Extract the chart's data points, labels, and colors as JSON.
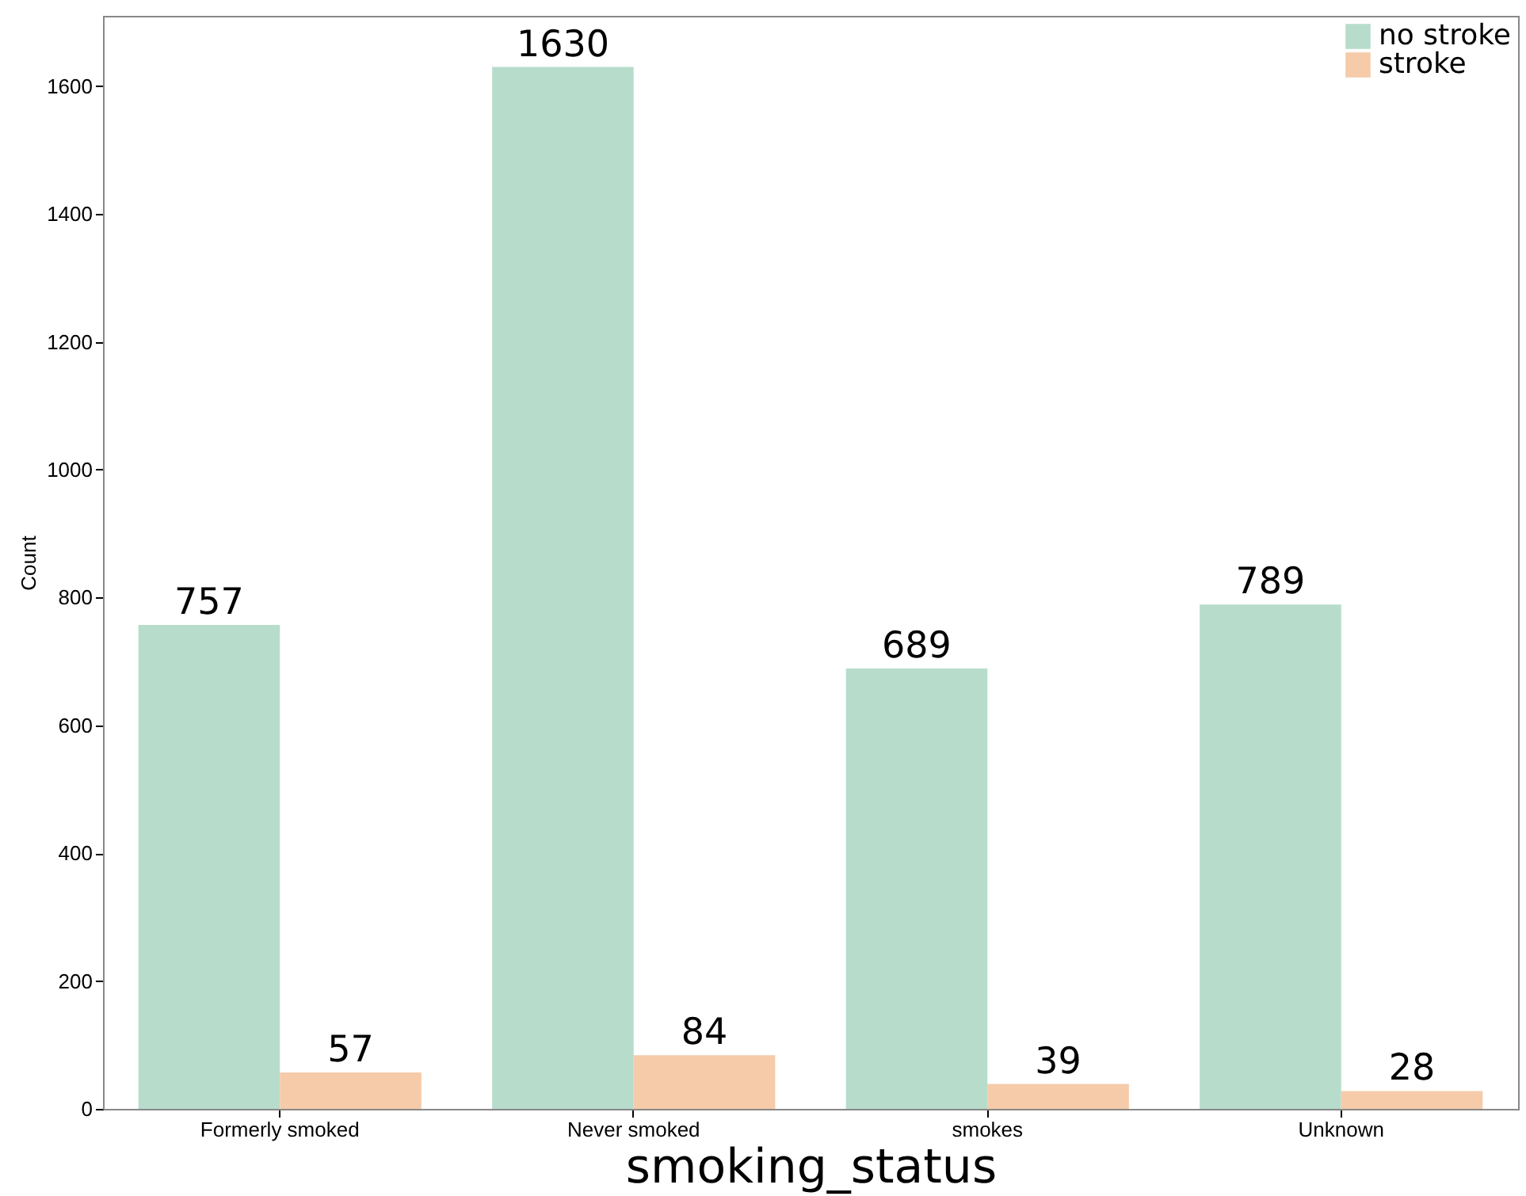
{
  "chart_data": {
    "type": "bar",
    "xlabel": "smoking_status",
    "ylabel": "Count",
    "categories": [
      "Formerly smoked",
      "Never smoked",
      "smokes",
      "Unknown"
    ],
    "series": [
      {
        "name": "no stroke",
        "color": "#b8dccb",
        "values": [
          757,
          1630,
          689,
          789
        ]
      },
      {
        "name": "stroke",
        "color": "#f5cbaa",
        "values": [
          57,
          84,
          39,
          28
        ]
      }
    ],
    "ylim": [
      0,
      1710
    ],
    "yticks": [
      0,
      200,
      400,
      600,
      800,
      1000,
      1200,
      1400,
      1600
    ],
    "data_labels": true,
    "legend": "top right",
    "grid": false
  }
}
